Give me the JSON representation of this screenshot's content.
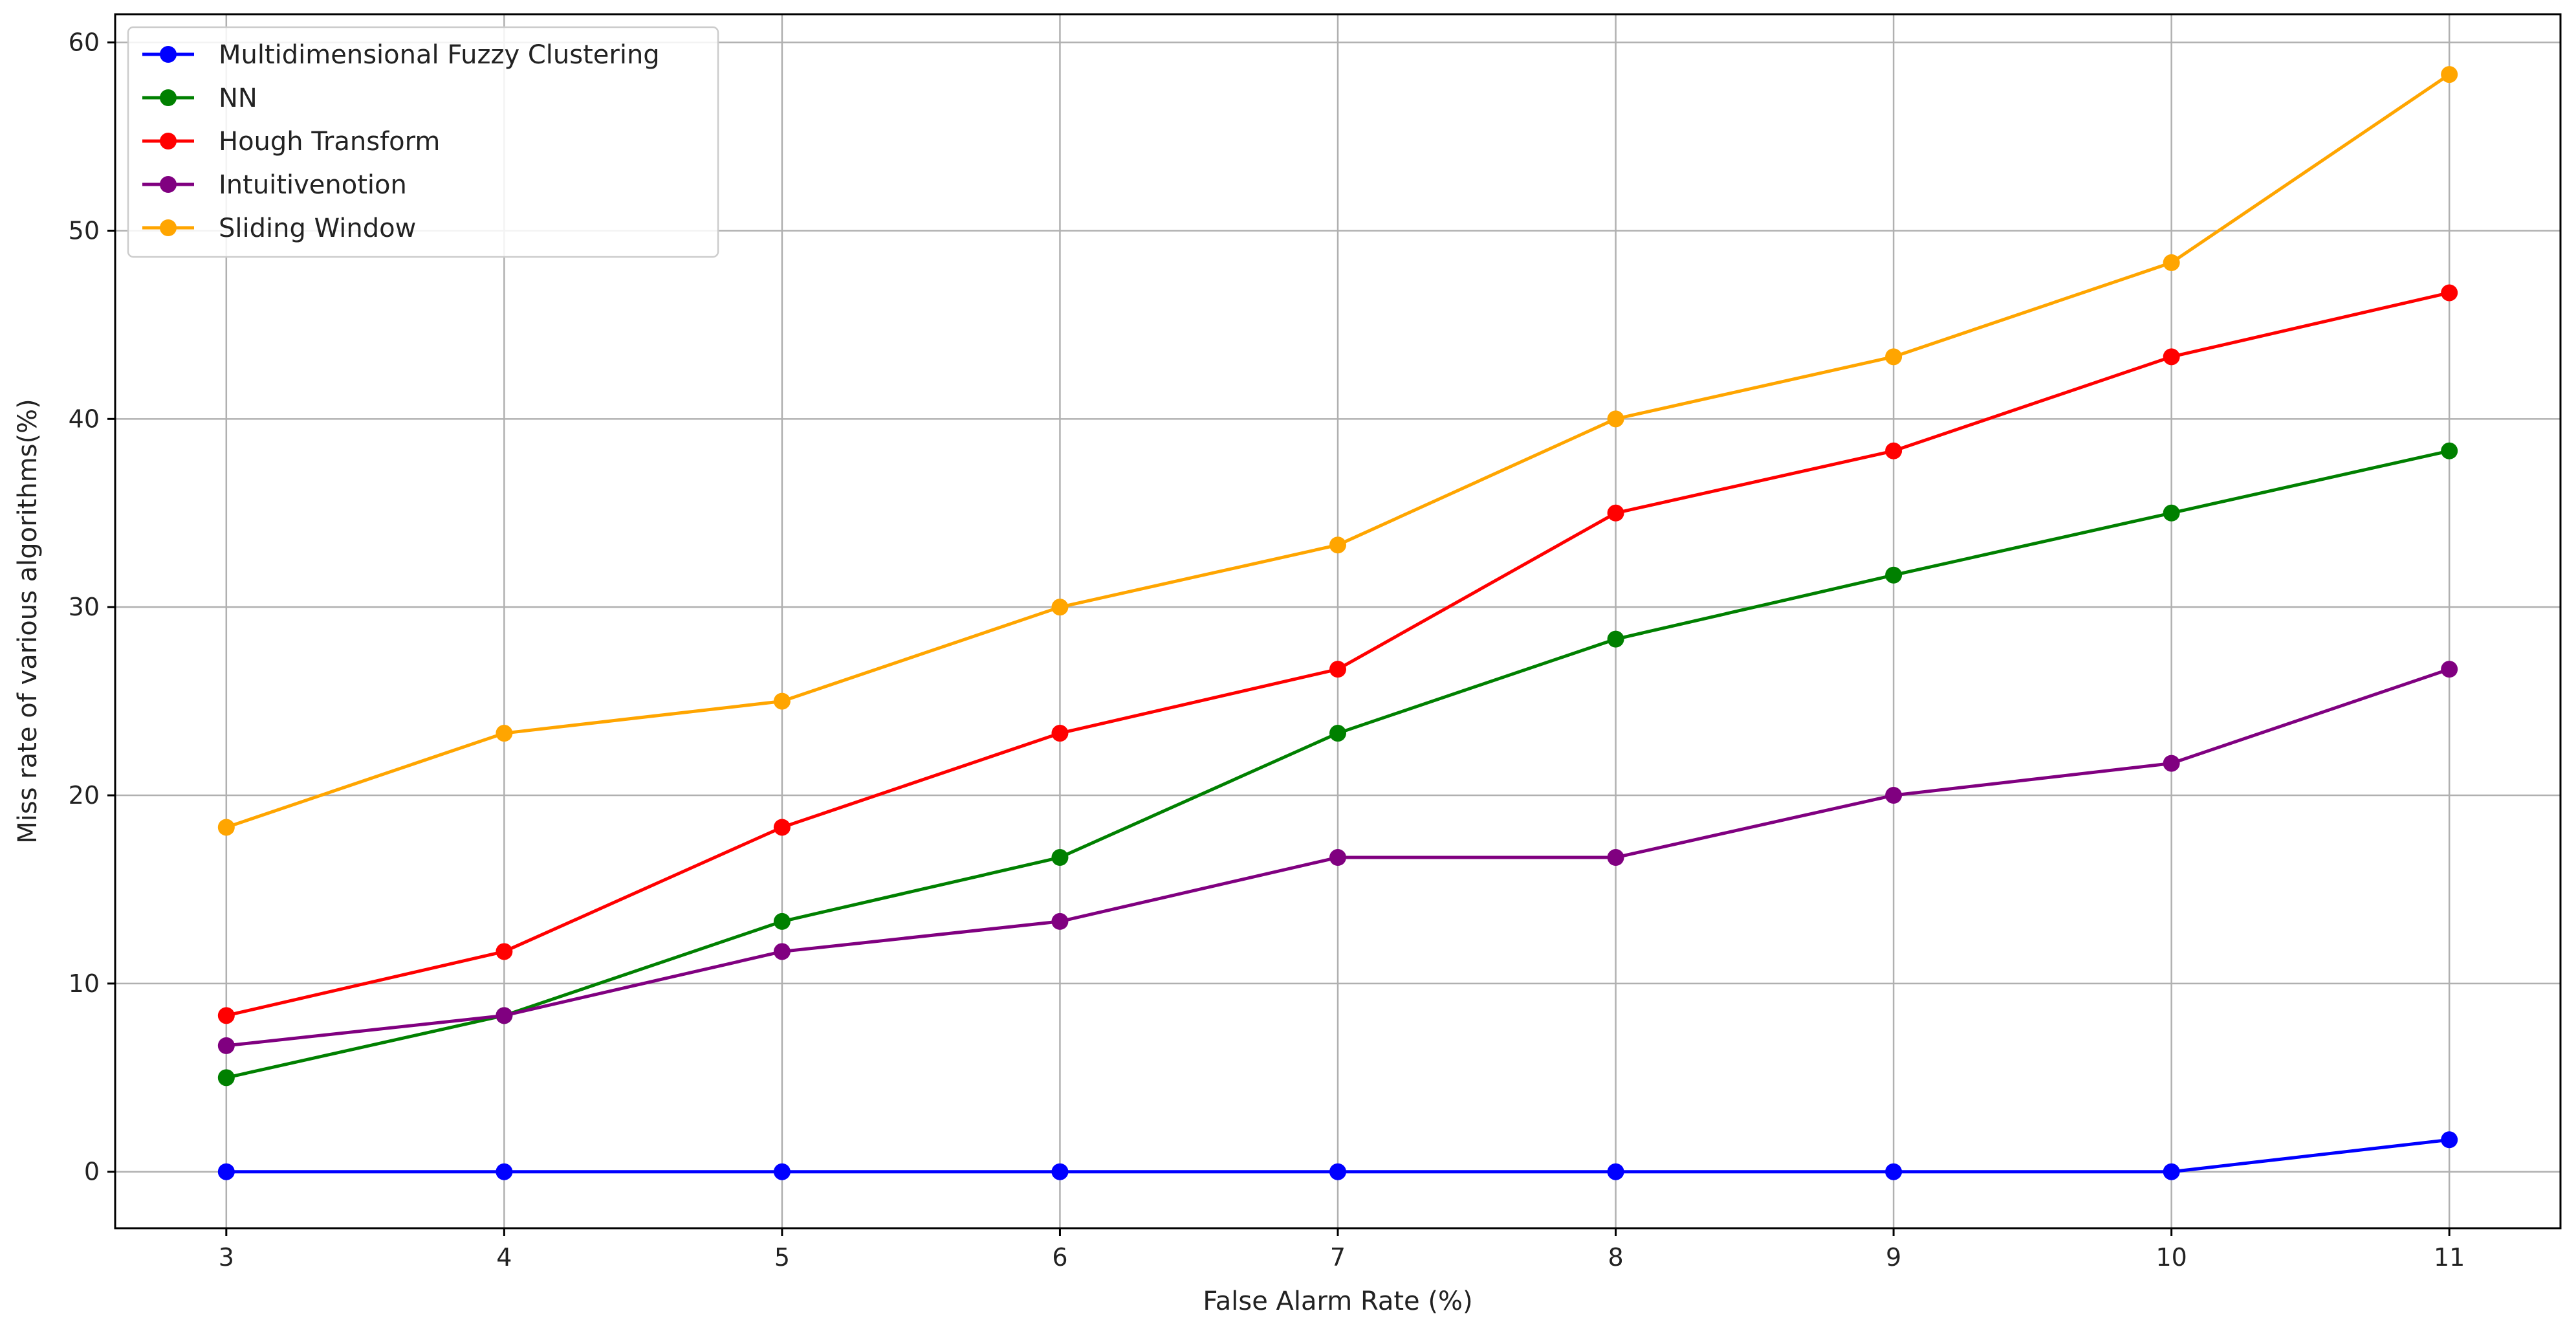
{
  "chart_data": {
    "type": "line",
    "title": "",
    "xlabel": "False Alarm Rate (%)",
    "ylabel": "Miss rate of various algorithms(%)",
    "x": [
      3,
      4,
      5,
      6,
      7,
      8,
      9,
      10,
      11
    ],
    "xlim": [
      2.6,
      11.4
    ],
    "ylim": [
      -3,
      61.5
    ],
    "xticks": [
      3,
      4,
      5,
      6,
      7,
      8,
      9,
      10,
      11
    ],
    "yticks": [
      0,
      10,
      20,
      30,
      40,
      50,
      60
    ],
    "grid": true,
    "legend_position": "top-left",
    "series": [
      {
        "name": "Multidimensional Fuzzy Clustering",
        "color": "#0000ff",
        "values": [
          0,
          0,
          0,
          0,
          0,
          0,
          0,
          0,
          1.7
        ]
      },
      {
        "name": "NN",
        "color": "#008000",
        "values": [
          5,
          8.3,
          13.3,
          16.7,
          23.3,
          28.3,
          31.7,
          35,
          38.3
        ]
      },
      {
        "name": "Hough Transform",
        "color": "#ff0000",
        "values": [
          8.3,
          11.7,
          18.3,
          23.3,
          26.7,
          35,
          38.3,
          43.3,
          46.7
        ]
      },
      {
        "name": "Intuitivenotion",
        "color": "#800080",
        "values": [
          6.7,
          8.3,
          11.7,
          13.3,
          16.7,
          16.7,
          20,
          21.7,
          26.7
        ]
      },
      {
        "name": "Sliding Window",
        "color": "#ffa500",
        "values": [
          18.3,
          23.3,
          25,
          30,
          33.3,
          40,
          43.3,
          48.3,
          58.3
        ]
      }
    ]
  }
}
